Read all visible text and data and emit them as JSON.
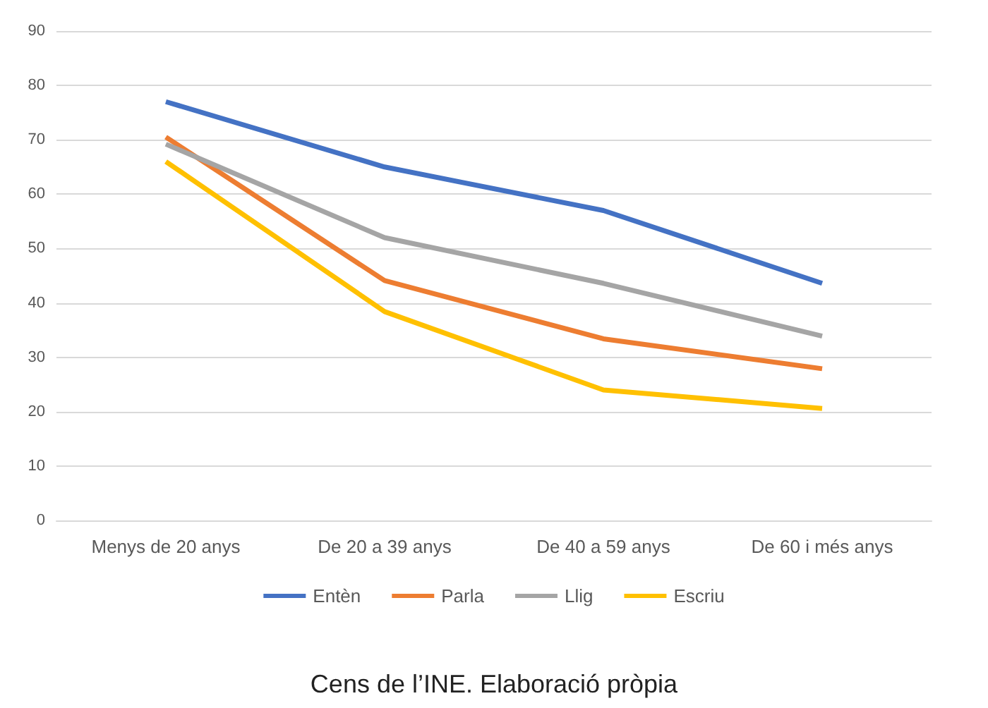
{
  "chart_data": {
    "type": "line",
    "categories": [
      "Menys de 20 anys",
      "De 20 a 39 anys",
      "De 40 a 59 anys",
      "De 60 i més anys"
    ],
    "series": [
      {
        "name": "Entèn",
        "color": "#4472c4",
        "values": [
          77,
          65,
          57,
          43.6
        ]
      },
      {
        "name": "Parla",
        "color": "#ed7d31",
        "values": [
          70.5,
          44.1,
          33.4,
          27.9
        ]
      },
      {
        "name": "Llig",
        "color": "#a5a5a5",
        "values": [
          69.2,
          52,
          43.6,
          33.9
        ]
      },
      {
        "name": "Escriu",
        "color": "#ffc000",
        "values": [
          66,
          38.4,
          24,
          20.6
        ]
      }
    ],
    "ylim": [
      0,
      90
    ],
    "yticks": [
      0,
      10,
      20,
      30,
      40,
      50,
      60,
      70,
      80,
      90
    ],
    "grid": "y",
    "legend": "bottom",
    "marker": "none",
    "line_style": "solid",
    "annotations": [
      "Cens de l’INE. Elaboració pròpia"
    ]
  }
}
